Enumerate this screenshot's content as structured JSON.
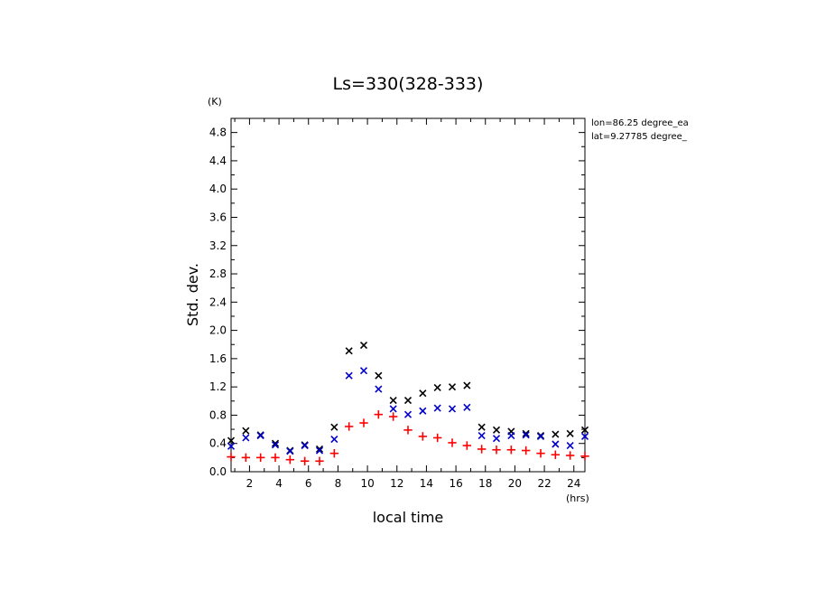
{
  "chart_data": {
    "type": "scatter",
    "title": "Ls=330(328-333)",
    "xlabel": "local time",
    "ylabel": "Std. dev.",
    "x_unit": "(hrs)",
    "y_unit": "(K)",
    "xlim": [
      0.75,
      24.75
    ],
    "ylim": [
      0,
      5.0
    ],
    "x_ticks": [
      2,
      4,
      6,
      8,
      10,
      12,
      14,
      16,
      18,
      20,
      22,
      24
    ],
    "y_ticks": [
      0.0,
      0.4,
      0.8,
      1.2,
      1.6,
      2.0,
      2.4,
      2.8,
      3.2,
      3.6,
      4.0,
      4.4,
      4.8
    ],
    "y_tick_labels": [
      "0.0",
      "0.4",
      "0.8",
      "1.2",
      "1.6",
      "2.0",
      "2.4",
      "2.8",
      "3.2",
      "3.6",
      "4.0",
      "4.4",
      "4.8"
    ],
    "annotations": [
      "lon=86.25 degree_ea",
      "lat=9.27785 degree_"
    ],
    "x": [
      0.75,
      1.75,
      2.75,
      3.75,
      4.75,
      5.75,
      6.75,
      7.75,
      8.75,
      9.75,
      10.75,
      11.75,
      12.75,
      13.75,
      14.75,
      15.75,
      16.75,
      17.75,
      18.75,
      19.75,
      20.75,
      21.75,
      22.75,
      23.75,
      24.75
    ],
    "series": [
      {
        "marker": "x",
        "color": "#000000",
        "values": [
          0.44,
          0.58,
          0.52,
          0.4,
          0.3,
          0.38,
          0.32,
          0.63,
          1.71,
          1.79,
          1.36,
          1.01,
          1.01,
          1.11,
          1.19,
          1.2,
          1.22,
          0.63,
          0.59,
          0.57,
          0.54,
          0.51,
          0.53,
          0.54,
          0.59
        ]
      },
      {
        "marker": "x",
        "color": "#0000cc",
        "values": [
          0.36,
          0.48,
          0.51,
          0.38,
          0.29,
          0.37,
          0.3,
          0.46,
          1.36,
          1.43,
          1.17,
          0.89,
          0.81,
          0.86,
          0.9,
          0.89,
          0.91,
          0.51,
          0.47,
          0.51,
          0.52,
          0.5,
          0.39,
          0.37,
          0.5
        ]
      },
      {
        "marker": "+",
        "color": "#ff0000",
        "values": [
          0.21,
          0.2,
          0.2,
          0.2,
          0.17,
          0.15,
          0.15,
          0.26,
          0.64,
          0.69,
          0.81,
          0.78,
          0.59,
          0.5,
          0.48,
          0.41,
          0.37,
          0.32,
          0.31,
          0.31,
          0.3,
          0.26,
          0.24,
          0.23,
          0.22
        ]
      }
    ]
  }
}
